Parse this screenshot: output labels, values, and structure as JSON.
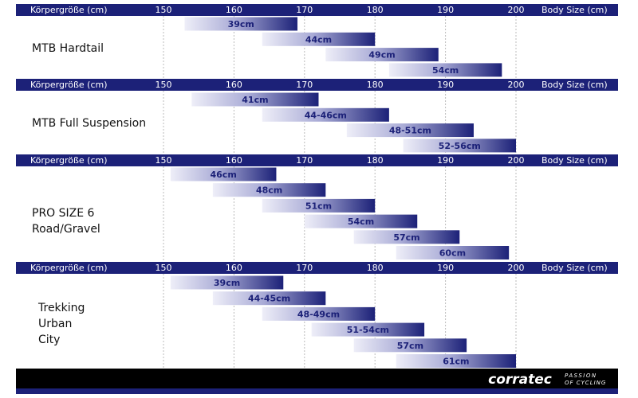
{
  "chart_data": [
    {
      "type": "range",
      "title": [
        "MTB Hardtail"
      ],
      "x_label_left": "Körpergröße (cm)",
      "x_label_right": "Body Size (cm)",
      "xlim": [
        150,
        200
      ],
      "xticks": [
        150,
        160,
        170,
        180,
        190,
        200
      ],
      "grid": true,
      "color": "#1c2178",
      "categories": [
        "39cm",
        "44cm",
        "49cm",
        "54cm"
      ],
      "start": [
        153,
        164,
        173,
        182
      ],
      "end": [
        169,
        180,
        189,
        198
      ]
    },
    {
      "type": "range",
      "title": [
        "MTB Full Suspension"
      ],
      "x_label_left": "Körpergröße (cm)",
      "x_label_right": "Body Size (cm)",
      "xlim": [
        150,
        200
      ],
      "xticks": [
        150,
        160,
        170,
        180,
        190,
        200
      ],
      "grid": true,
      "color": "#1c2178",
      "categories": [
        "41cm",
        "44-46cm",
        "48-51cm",
        "52-56cm"
      ],
      "start": [
        154,
        164,
        176,
        184
      ],
      "end": [
        172,
        182,
        194,
        200
      ]
    },
    {
      "type": "range",
      "title": [
        "PRO SIZE 6",
        "Road/Gravel"
      ],
      "x_label_left": "Körpergröße (cm)",
      "x_label_right": "Body Size (cm)",
      "xlim": [
        150,
        200
      ],
      "xticks": [
        150,
        160,
        170,
        180,
        190,
        200
      ],
      "grid": true,
      "color": "#1c2178",
      "categories": [
        "46cm",
        "48cm",
        "51cm",
        "54cm",
        "57cm",
        "60cm"
      ],
      "start": [
        151,
        157,
        164,
        170,
        177,
        183
      ],
      "end": [
        166,
        173,
        180,
        186,
        192,
        199
      ]
    },
    {
      "type": "range",
      "title": [
        "Trekking",
        "Urban",
        "City"
      ],
      "x_label_left": "Körpergröße (cm)",
      "x_label_right": "Body Size (cm)",
      "xlim": [
        150,
        200
      ],
      "xticks": [
        150,
        160,
        170,
        180,
        190,
        200
      ],
      "grid": true,
      "color": "#1c2178",
      "categories": [
        "39cm",
        "44-45cm",
        "48-49cm",
        "51-54cm",
        "57cm",
        "61cm"
      ],
      "start": [
        151,
        157,
        164,
        171,
        177,
        183
      ],
      "end": [
        167,
        173,
        180,
        187,
        193,
        200
      ]
    }
  ],
  "footer": {
    "brand": "corratec",
    "tagline": [
      "PASSION",
      "OF CYCLING"
    ]
  }
}
